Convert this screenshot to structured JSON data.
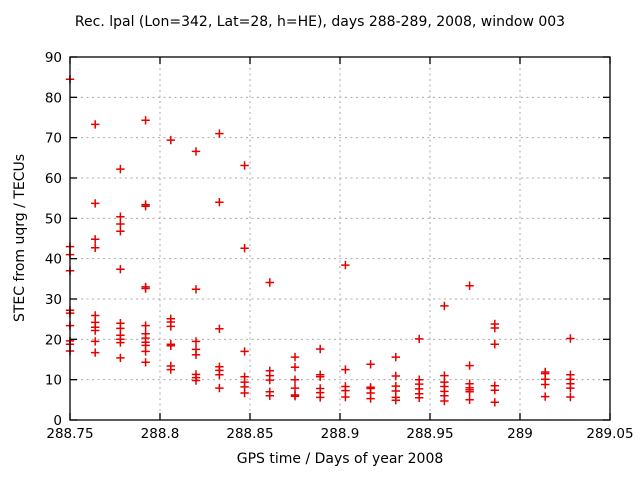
{
  "chart_data": {
    "type": "scatter",
    "title": "Rec. lpal (Lon=342, Lat=28, h=HE), days 288-289, 2008, window 003",
    "xlabel": "GPS time / Days of year 2008",
    "ylabel": "STEC from uqrg / TECUs",
    "xlim": [
      288.75,
      289.05
    ],
    "ylim": [
      0,
      90
    ],
    "xticks": [
      288.75,
      288.8,
      288.85,
      288.9,
      288.95,
      289,
      289.05
    ],
    "xtick_labels": [
      "288.75",
      "288.8",
      "288.85",
      "288.9",
      "288.95",
      "289",
      "289.05"
    ],
    "yticks": [
      0,
      10,
      20,
      30,
      40,
      50,
      60,
      70,
      80,
      90
    ],
    "ytick_labels": [
      "0",
      "10",
      "20",
      "30",
      "40",
      "50",
      "60",
      "70",
      "80",
      "90"
    ],
    "grid": true,
    "legend": false,
    "marker": "plus",
    "marker_color": "#e60000",
    "axis_color": "#000000",
    "grid_color": "#a8a8a8",
    "background_color": "#ffffff",
    "points": [
      [
        288.75,
        84.5
      ],
      [
        288.75,
        43.0
      ],
      [
        288.75,
        41.0
      ],
      [
        288.75,
        37.0
      ],
      [
        288.75,
        27.2
      ],
      [
        288.75,
        26.5
      ],
      [
        288.75,
        23.4
      ],
      [
        288.75,
        19.6
      ],
      [
        288.75,
        18.8
      ],
      [
        288.75,
        17.1
      ],
      [
        288.764,
        73.3
      ],
      [
        288.764,
        53.7
      ],
      [
        288.764,
        44.8
      ],
      [
        288.764,
        42.7
      ],
      [
        288.764,
        25.9
      ],
      [
        288.764,
        24.2
      ],
      [
        288.764,
        23.0
      ],
      [
        288.764,
        22.2
      ],
      [
        288.764,
        19.5
      ],
      [
        288.764,
        16.7
      ],
      [
        288.778,
        62.2
      ],
      [
        288.778,
        50.4
      ],
      [
        288.778,
        48.6
      ],
      [
        288.778,
        46.8
      ],
      [
        288.778,
        37.4
      ],
      [
        288.778,
        24.0
      ],
      [
        288.778,
        22.7
      ],
      [
        288.778,
        21.0
      ],
      [
        288.778,
        20.0
      ],
      [
        288.778,
        19.2
      ],
      [
        288.778,
        15.4
      ],
      [
        288.792,
        74.3
      ],
      [
        288.792,
        53.4
      ],
      [
        288.792,
        53.0
      ],
      [
        288.792,
        33.0
      ],
      [
        288.792,
        32.6
      ],
      [
        288.792,
        23.4
      ],
      [
        288.792,
        21.4
      ],
      [
        288.792,
        20.3
      ],
      [
        288.792,
        19.3
      ],
      [
        288.792,
        18.5
      ],
      [
        288.792,
        17.0
      ],
      [
        288.792,
        14.3
      ],
      [
        288.806,
        69.4
      ],
      [
        288.806,
        25.1
      ],
      [
        288.806,
        24.3
      ],
      [
        288.806,
        23.2
      ],
      [
        288.806,
        18.8
      ],
      [
        288.806,
        18.4
      ],
      [
        288.806,
        13.4
      ],
      [
        288.806,
        12.5
      ],
      [
        288.82,
        66.6
      ],
      [
        288.82,
        32.4
      ],
      [
        288.82,
        19.5
      ],
      [
        288.82,
        17.5
      ],
      [
        288.82,
        16.2
      ],
      [
        288.82,
        11.3
      ],
      [
        288.82,
        10.5
      ],
      [
        288.82,
        9.8
      ],
      [
        288.833,
        71.0
      ],
      [
        288.833,
        54.0
      ],
      [
        288.833,
        22.6
      ],
      [
        288.833,
        13.2
      ],
      [
        288.833,
        12.3
      ],
      [
        288.833,
        11.2
      ],
      [
        288.833,
        7.9
      ],
      [
        288.847,
        63.1
      ],
      [
        288.847,
        42.6
      ],
      [
        288.847,
        17.0
      ],
      [
        288.847,
        10.7
      ],
      [
        288.847,
        9.4
      ],
      [
        288.847,
        8.2
      ],
      [
        288.847,
        6.7
      ],
      [
        288.861,
        34.1
      ],
      [
        288.861,
        12.2
      ],
      [
        288.861,
        11.0
      ],
      [
        288.861,
        9.9
      ],
      [
        288.861,
        7.0
      ],
      [
        288.861,
        6.0
      ],
      [
        288.875,
        15.6
      ],
      [
        288.875,
        13.1
      ],
      [
        288.875,
        10.0
      ],
      [
        288.875,
        7.9
      ],
      [
        288.875,
        6.2
      ],
      [
        288.875,
        5.9
      ],
      [
        288.889,
        17.6
      ],
      [
        288.889,
        11.2
      ],
      [
        288.889,
        10.7
      ],
      [
        288.889,
        7.8
      ],
      [
        288.889,
        6.8
      ],
      [
        288.889,
        5.6
      ],
      [
        288.903,
        38.4
      ],
      [
        288.903,
        12.5
      ],
      [
        288.903,
        8.3
      ],
      [
        288.903,
        7.3
      ],
      [
        288.903,
        5.7
      ],
      [
        288.917,
        13.8
      ],
      [
        288.917,
        8.1
      ],
      [
        288.917,
        7.8
      ],
      [
        288.917,
        6.7
      ],
      [
        288.917,
        5.3
      ],
      [
        288.931,
        15.6
      ],
      [
        288.931,
        10.9
      ],
      [
        288.931,
        8.4
      ],
      [
        288.931,
        7.2
      ],
      [
        288.931,
        5.6
      ],
      [
        288.931,
        4.9
      ],
      [
        288.944,
        20.1
      ],
      [
        288.944,
        10.0
      ],
      [
        288.944,
        8.9
      ],
      [
        288.944,
        7.7
      ],
      [
        288.944,
        6.5
      ],
      [
        288.944,
        5.5
      ],
      [
        288.958,
        28.3
      ],
      [
        288.958,
        11.0
      ],
      [
        288.958,
        9.4
      ],
      [
        288.958,
        8.3
      ],
      [
        288.958,
        7.1
      ],
      [
        288.958,
        6.0
      ],
      [
        288.958,
        4.7
      ],
      [
        288.972,
        33.3
      ],
      [
        288.972,
        13.5
      ],
      [
        288.972,
        9.0
      ],
      [
        288.972,
        8.0
      ],
      [
        288.972,
        7.5
      ],
      [
        288.972,
        7.0
      ],
      [
        288.972,
        5.0
      ],
      [
        288.986,
        23.8
      ],
      [
        288.986,
        22.8
      ],
      [
        288.986,
        18.8
      ],
      [
        288.986,
        8.5
      ],
      [
        288.986,
        7.4
      ],
      [
        288.986,
        4.4
      ],
      [
        289.014,
        11.9
      ],
      [
        289.014,
        11.5
      ],
      [
        289.014,
        10.1
      ],
      [
        289.014,
        8.8
      ],
      [
        289.014,
        5.8
      ],
      [
        289.028,
        20.2
      ],
      [
        289.028,
        11.2
      ],
      [
        289.028,
        10.1
      ],
      [
        289.028,
        9.0
      ],
      [
        289.028,
        7.9
      ],
      [
        289.028,
        5.7
      ]
    ]
  }
}
